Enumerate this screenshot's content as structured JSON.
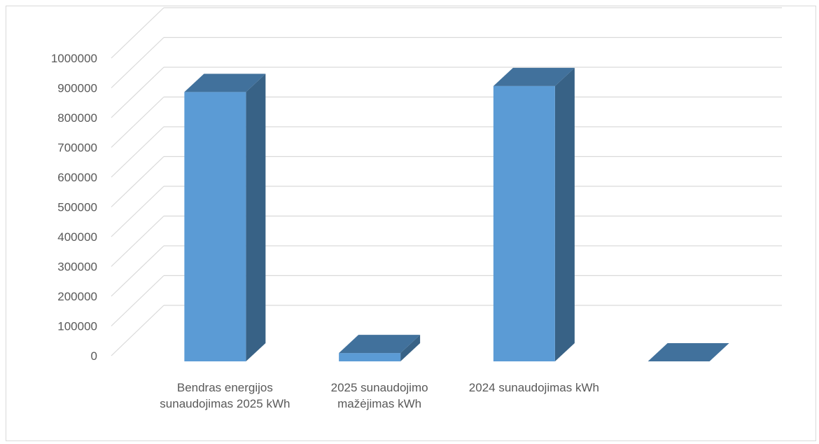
{
  "chart_data": {
    "type": "bar",
    "style": "3d-column",
    "title": "",
    "xlabel": "",
    "ylabel": "",
    "categories": [
      "Bendras energijos sunaudojimas 2025 kWh",
      "2025 sunaudojimo mažėjimas kWh",
      "2024 sunaudojimas kWh",
      ""
    ],
    "values": [
      905000,
      28000,
      925000,
      0
    ],
    "ylim": [
      0,
      1000000
    ],
    "yticks": [
      "0",
      "100000",
      "200000",
      "300000",
      "400000",
      "500000",
      "600000",
      "700000",
      "800000",
      "900000",
      "1000000"
    ],
    "grid": true,
    "legend": "none",
    "colors": {
      "front": "#5b9bd5",
      "side": "#386286",
      "top": "#41719c",
      "grid": "#d9d9d9"
    }
  }
}
